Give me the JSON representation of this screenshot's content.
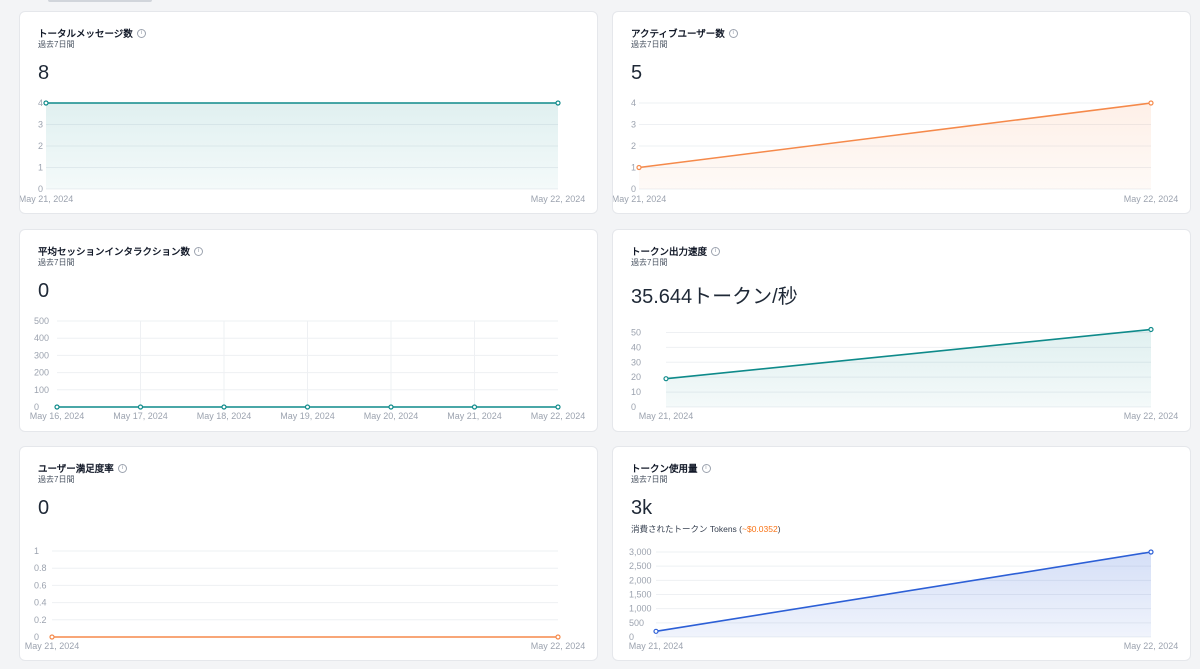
{
  "cards": [
    {
      "title": "トータルメッセージ数",
      "subtitle": "過去7日間",
      "value": "8",
      "value_muted": false,
      "chart_data": {
        "type": "area",
        "x": [
          "May 21, 2024",
          "May 22, 2024"
        ],
        "series": [
          {
            "values": [
              4,
              4
            ]
          }
        ],
        "y_ticks": [
          0,
          1,
          2,
          3,
          4
        ],
        "ylim": [
          0,
          4
        ],
        "grid": true,
        "color": "#0e8a8a"
      }
    },
    {
      "title": "アクティブユーザー数",
      "subtitle": "過去7日間",
      "value": "5",
      "value_muted": false,
      "chart_data": {
        "type": "area",
        "x": [
          "May 21, 2024",
          "May 22, 2024"
        ],
        "series": [
          {
            "values": [
              1,
              4
            ]
          }
        ],
        "y_ticks": [
          0,
          1,
          2,
          3,
          4
        ],
        "ylim": [
          0,
          4
        ],
        "grid": true,
        "color": "#f5894a"
      }
    },
    {
      "title": "平均セッションインタラクション数",
      "subtitle": "過去7日間",
      "value": "0",
      "value_muted": true,
      "chart_data": {
        "type": "line",
        "x": [
          "May 16, 2024",
          "May 17, 2024",
          "May 18, 2024",
          "May 19, 2024",
          "May 20, 2024",
          "May 21, 2024",
          "May 22, 2024"
        ],
        "series": [
          {
            "values": [
              0,
              0,
              0,
              0,
              0,
              0,
              0
            ]
          }
        ],
        "y_ticks": [
          0,
          100,
          200,
          300,
          400,
          500
        ],
        "ylim": [
          0,
          500
        ],
        "grid": true,
        "color": "#0e8a8a"
      }
    },
    {
      "title": "トークン出力速度",
      "subtitle": "過去7日間",
      "value": "35.644トークン/秒",
      "value_muted": false,
      "chart_data": {
        "type": "area",
        "x": [
          "May 21, 2024",
          "May 22, 2024"
        ],
        "series": [
          {
            "values": [
              19,
              52
            ]
          }
        ],
        "y_ticks": [
          0,
          10,
          20,
          30,
          40,
          50
        ],
        "ylim": [
          0,
          55
        ],
        "grid": true,
        "color": "#0e8a8a"
      }
    },
    {
      "title": "ユーザー満足度率",
      "subtitle": "過去7日間",
      "value": "0",
      "value_muted": true,
      "chart_data": {
        "type": "line",
        "x": [
          "May 21, 2024",
          "May 22, 2024"
        ],
        "series": [
          {
            "values": [
              0,
              0
            ]
          }
        ],
        "y_ticks": [
          "0",
          "0.2",
          "0.4",
          "0.6",
          "0.8",
          "1"
        ],
        "ylim": [
          0,
          1
        ],
        "grid": true,
        "color": "#f5894a"
      }
    },
    {
      "title": "トークン使用量",
      "subtitle": "過去7日間",
      "value": "3k",
      "value_muted": false,
      "note_prefix": "消費されたトークン Tokens (",
      "note_cost": "~$0.0352",
      "note_suffix": ")",
      "chart_data": {
        "type": "area",
        "x": [
          "May 21, 2024",
          "May 22, 2024"
        ],
        "series": [
          {
            "values": [
              200,
              3000
            ]
          }
        ],
        "y_ticks": [
          "0",
          "500",
          "1,000",
          "1,500",
          "2,000",
          "2,500",
          "3,000"
        ],
        "ylim": [
          0,
          3000
        ],
        "grid": true,
        "color": "#2c5fd6"
      }
    }
  ]
}
